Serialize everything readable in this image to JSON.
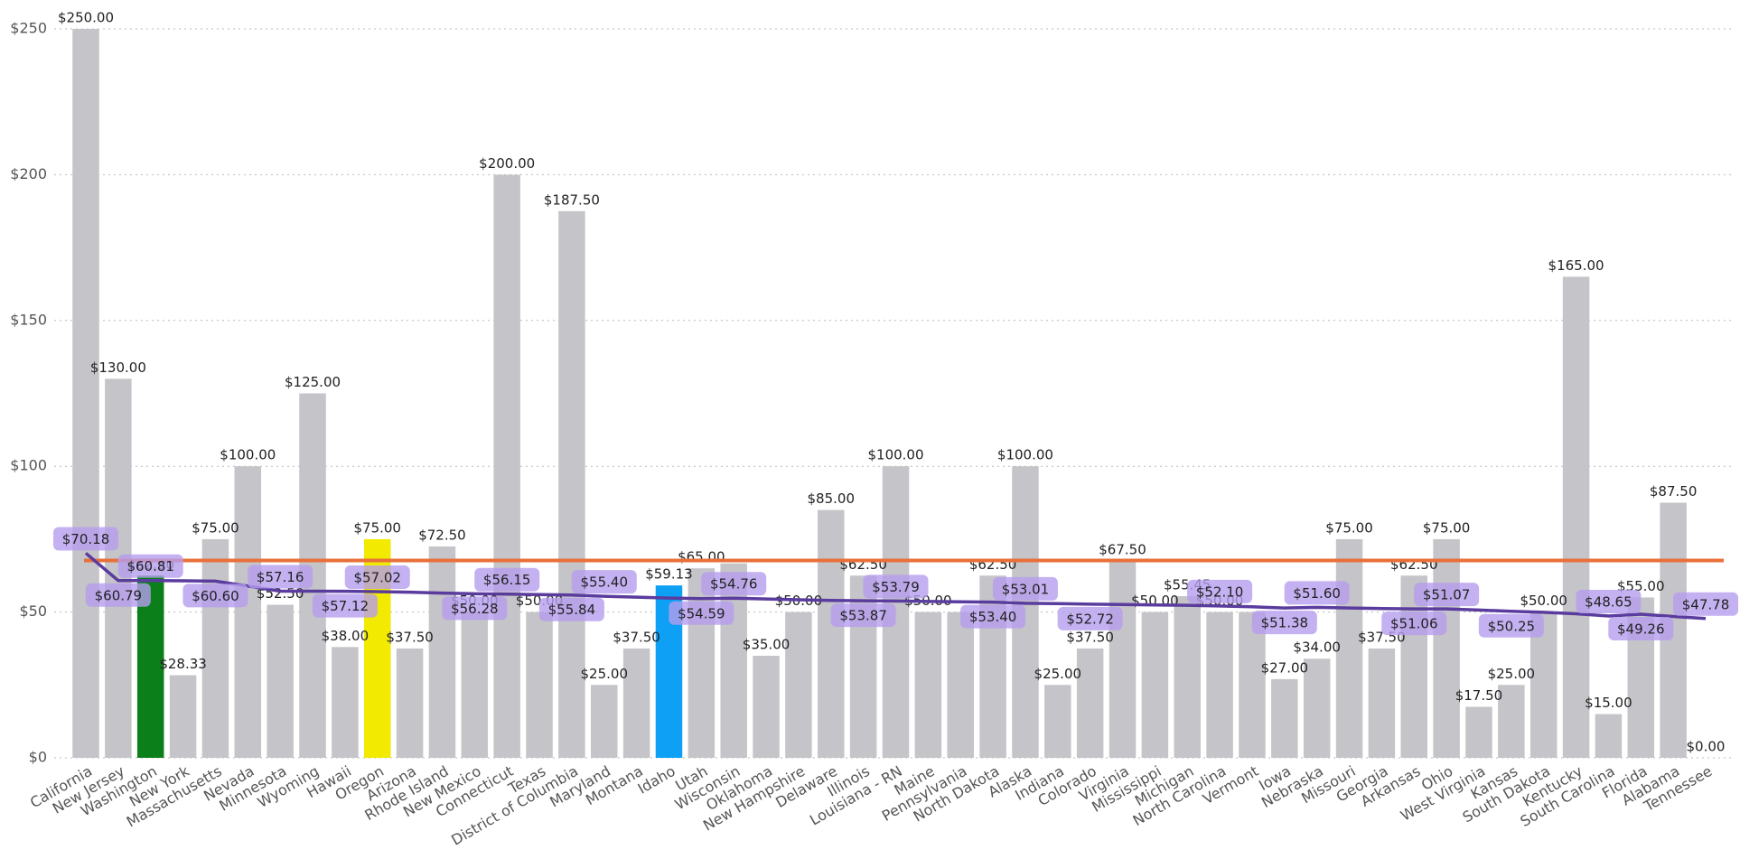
{
  "chart_data": {
    "type": "bar",
    "categories": [
      "California",
      "New Jersey",
      "Washington",
      "New York",
      "Massachusetts",
      "Nevada",
      "Minnesota",
      "Wyoming",
      "Hawaii",
      "Oregon",
      "Arizona",
      "Rhode Island",
      "New Mexico",
      "Connecticut",
      "Texas",
      "District of Columbia",
      "Maryland",
      "Montana",
      "Idaho",
      "Utah",
      "Wisconsin",
      "Oklahoma",
      "New Hampshire",
      "Delaware",
      "Illinois",
      "Louisiana - RN",
      "Maine",
      "Pennsylvania",
      "North Dakota",
      "Alaska",
      "Indiana",
      "Colorado",
      "Virginia",
      "Mississippi",
      "Michigan",
      "North Carolina",
      "Vermont",
      "Iowa",
      "Nebraska",
      "Missouri",
      "Georgia",
      "Arkansas",
      "Ohio",
      "West Virginia",
      "Kansas",
      "South Dakota",
      "Kentucky",
      "South Carolina",
      "Florida",
      "Alabama",
      "Tennessee"
    ],
    "values": [
      250,
      130,
      62.5,
      28.33,
      75,
      100,
      52.5,
      125,
      38,
      75,
      37.5,
      72.5,
      50,
      200,
      50,
      187.5,
      25,
      37.5,
      59.13,
      65,
      66.67,
      35,
      50,
      85,
      62.5,
      100,
      50,
      50,
      62.5,
      100,
      25,
      37.5,
      67.5,
      50,
      55.45,
      50,
      50,
      27,
      34,
      75,
      37.5,
      62.5,
      75,
      17.5,
      25,
      50,
      165,
      15,
      55,
      87.5,
      0
    ],
    "value_labels": [
      "$250.00",
      "$130.00",
      "$62.50",
      "$28.33",
      "$75.00",
      "$100.00",
      "$52.50",
      "$125.00",
      "$38.00",
      "$75.00",
      "$37.50",
      "$72.50",
      "$50.00",
      "$200.00",
      "$50.00",
      "$187.50",
      "$25.00",
      "$37.50",
      "$59.13",
      "$65.00",
      null,
      "$35.00",
      "$50.00",
      "$85.00",
      "$62.50",
      "$100.00",
      "$50.00",
      null,
      "$62.50",
      "$100.00",
      "$25.00",
      "$37.50",
      "$67.50",
      "$50.00",
      "$55.45",
      "$50.00",
      null,
      "$27.00",
      "$34.00",
      "$75.00",
      "$37.50",
      "$62.50",
      "$75.00",
      "$17.50",
      "$25.00",
      "$50.00",
      "$165.00",
      "$15.00",
      "$55.00",
      "$87.50",
      "$0.00"
    ],
    "colors": [
      "#c5c4c9",
      "#c5c4c9",
      "#0b7f1a",
      "#c5c4c9",
      "#c5c4c9",
      "#c5c4c9",
      "#c5c4c9",
      "#c5c4c9",
      "#c5c4c9",
      "#f2ea00",
      "#c5c4c9",
      "#c5c4c9",
      "#c5c4c9",
      "#c5c4c9",
      "#c5c4c9",
      "#c5c4c9",
      "#c5c4c9",
      "#c5c4c9",
      "#0ea0f5",
      "#c5c4c9",
      "#c5c4c9",
      "#c5c4c9",
      "#c5c4c9",
      "#c5c4c9",
      "#c5c4c9",
      "#c5c4c9",
      "#c5c4c9",
      "#c5c4c9",
      "#c5c4c9",
      "#c5c4c9",
      "#c5c4c9",
      "#c5c4c9",
      "#c5c4c9",
      "#c5c4c9",
      "#c5c4c9",
      "#c5c4c9",
      "#c5c4c9",
      "#c5c4c9",
      "#c5c4c9",
      "#c5c4c9",
      "#c5c4c9",
      "#c5c4c9",
      "#c5c4c9",
      "#c5c4c9",
      "#c5c4c9",
      "#c5c4c9",
      "#c5c4c9",
      "#c5c4c9",
      "#c5c4c9",
      "#c5c4c9",
      "#c5c4c9"
    ],
    "trend": {
      "color": "#5a3c9e",
      "values": [
        70.18,
        60.79,
        60.81,
        60.7,
        60.6,
        58.9,
        57.16,
        57.14,
        57.12,
        57.02,
        56.8,
        56.5,
        56.28,
        56.15,
        56.0,
        55.84,
        55.4,
        55.1,
        54.8,
        54.59,
        54.76,
        54.5,
        54.2,
        54.0,
        53.87,
        53.79,
        53.65,
        53.5,
        53.4,
        53.01,
        52.9,
        52.72,
        52.6,
        52.45,
        52.3,
        52.1,
        51.8,
        51.38,
        51.6,
        51.4,
        51.2,
        51.06,
        51.07,
        50.7,
        50.25,
        49.9,
        49.4,
        48.65,
        49.26,
        48.5,
        47.78
      ],
      "value_labels": [
        "$70.18",
        "$60.79",
        "$60.81",
        null,
        "$60.60",
        null,
        "$57.16",
        null,
        "$57.12",
        "$57.02",
        null,
        null,
        "$56.28",
        "$56.15",
        null,
        "$55.84",
        "$55.40",
        null,
        null,
        "$54.59",
        "$54.76",
        null,
        null,
        null,
        "$53.87",
        "$53.79",
        null,
        null,
        "$53.40",
        "$53.01",
        null,
        "$52.72",
        null,
        null,
        null,
        "$52.10",
        null,
        "$51.38",
        "$51.60",
        null,
        null,
        "$51.06",
        "$51.07",
        null,
        "$50.25",
        null,
        null,
        "$48.65",
        "$49.26",
        null,
        "$47.78"
      ]
    },
    "reference_line": {
      "value": 67.7,
      "color": "#e8703a"
    },
    "ylim": [
      0,
      250
    ],
    "yticks": [
      {
        "value": 0,
        "label": "$0"
      },
      {
        "value": 50,
        "label": "$50"
      },
      {
        "value": 100,
        "label": "$100"
      },
      {
        "value": 150,
        "label": "$150"
      },
      {
        "value": 200,
        "label": "$200"
      },
      {
        "value": 250,
        "label": "$250"
      }
    ],
    "grid": true
  }
}
